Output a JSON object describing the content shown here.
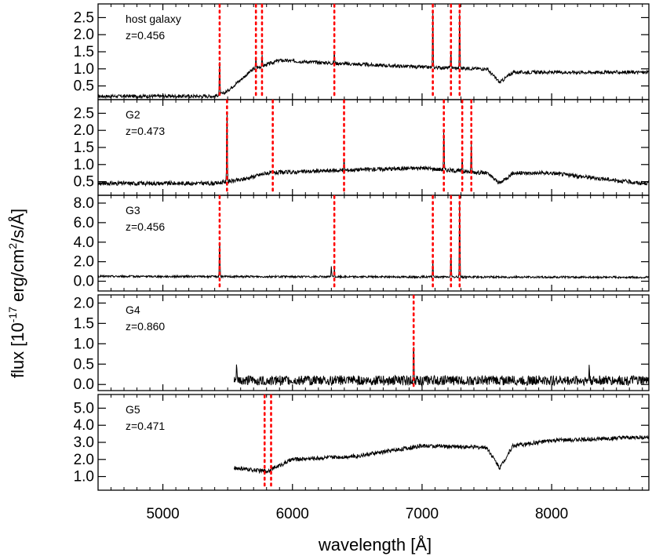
{
  "chart_data": {
    "type": "line",
    "xlabel": "wavelength [Å]",
    "ylabel": "flux [10-17 erg/cm2/s/Å]",
    "ylabel_parts": {
      "prefix": "flux [10",
      "exp1": "-17",
      "middle": " erg/cm",
      "exp2": "2",
      "suffix": "/s/Å]"
    },
    "xlim": [
      4500,
      8750
    ],
    "xticks": [
      5000,
      6000,
      7000,
      8000
    ],
    "line_color": "#000000",
    "marker_color": "#ff0000",
    "panels": [
      {
        "name": "host galaxy",
        "redshift": "z=0.456",
        "ylim": [
          0.1,
          2.9
        ],
        "yticks": [
          0.5,
          1.0,
          1.5,
          2.0,
          2.5
        ],
        "ytick_labels": [
          "0.5",
          "1.0",
          "1.5",
          "2.0",
          "2.5"
        ],
        "marker_lines": [
          5438,
          5718,
          5765,
          6323,
          7083,
          7223,
          7290
        ],
        "continuum": [
          [
            4500,
            0.2
          ],
          [
            5400,
            0.2
          ],
          [
            5480,
            0.3
          ],
          [
            5700,
            1.0
          ],
          [
            5900,
            1.25
          ],
          [
            6400,
            1.15
          ],
          [
            7000,
            1.05
          ],
          [
            7500,
            1.0
          ],
          [
            7600,
            0.6
          ],
          [
            7700,
            0.9
          ],
          [
            8000,
            0.9
          ],
          [
            8700,
            0.9
          ]
        ],
        "noise": 0.05,
        "emission": [
          [
            5438,
            1.0
          ],
          [
            5718,
            0.3
          ],
          [
            5765,
            0.3
          ],
          [
            6323,
            0.3
          ],
          [
            7083,
            1.6
          ],
          [
            7223,
            0.5
          ],
          [
            7290,
            1.6
          ]
        ]
      },
      {
        "name": "G2",
        "redshift": "z=0.473",
        "ylim": [
          0.1,
          2.9
        ],
        "yticks": [
          0.5,
          1.0,
          1.5,
          2.0,
          2.5
        ],
        "ytick_labels": [
          "0.5",
          "1.0",
          "1.5",
          "2.0",
          "2.5"
        ],
        "marker_lines": [
          5495,
          5848,
          6398,
          7168,
          7310,
          7380
        ],
        "continuum": [
          [
            4500,
            0.45
          ],
          [
            5400,
            0.45
          ],
          [
            5600,
            0.55
          ],
          [
            5800,
            0.75
          ],
          [
            6500,
            0.85
          ],
          [
            7000,
            0.9
          ],
          [
            7500,
            0.75
          ],
          [
            7600,
            0.45
          ],
          [
            7700,
            0.75
          ],
          [
            8000,
            0.75
          ],
          [
            8700,
            0.45
          ]
        ],
        "noise": 0.06,
        "emission": [
          [
            5495,
            2.2
          ],
          [
            6398,
            0.3
          ],
          [
            7168,
            1.2
          ],
          [
            7310,
            0.4
          ],
          [
            7380,
            0.8
          ]
        ]
      },
      {
        "name": "G3",
        "redshift": "z=0.456",
        "ylim": [
          -1.0,
          8.8
        ],
        "yticks": [
          0.0,
          2.0,
          4.0,
          6.0,
          8.0
        ],
        "ytick_labels": [
          "0.0",
          "2.0",
          "4.0",
          "6.0",
          "8.0"
        ],
        "marker_lines": [
          5438,
          6323,
          7083,
          7223,
          7290
        ],
        "continuum": [
          [
            4500,
            0.5
          ],
          [
            8700,
            0.4
          ]
        ],
        "noise": 0.1,
        "emission": [
          [
            5438,
            3.9
          ],
          [
            6300,
            1.0
          ],
          [
            6323,
            0.8
          ],
          [
            7083,
            1.7
          ],
          [
            7223,
            2.4
          ],
          [
            7290,
            7.8
          ]
        ]
      },
      {
        "name": "G4",
        "redshift": "z=0.860",
        "ylim": [
          -0.15,
          2.2
        ],
        "yticks": [
          0.0,
          0.5,
          1.0,
          1.5,
          2.0
        ],
        "ytick_labels": [
          "0.0",
          "0.5",
          "1.0",
          "1.5",
          "2.0"
        ],
        "marker_lines": [
          6935
        ],
        "start": 5550,
        "continuum": [
          [
            5550,
            0.1
          ],
          [
            8700,
            0.1
          ]
        ],
        "noise": 0.12,
        "emission": [
          [
            5570,
            0.4
          ],
          [
            6935,
            1.0
          ],
          [
            8290,
            0.4
          ]
        ]
      },
      {
        "name": "G5",
        "redshift": "z=0.471",
        "ylim": [
          0.2,
          5.8
        ],
        "yticks": [
          1.0,
          2.0,
          3.0,
          4.0,
          5.0
        ],
        "ytick_labels": [
          "1.0",
          "2.0",
          "3.0",
          "4.0",
          "5.0"
        ],
        "marker_lines": [
          5785,
          5835
        ],
        "start": 5550,
        "continuum": [
          [
            5550,
            1.5
          ],
          [
            5800,
            1.3
          ],
          [
            6000,
            2.0
          ],
          [
            6500,
            2.2
          ],
          [
            7000,
            2.8
          ],
          [
            7500,
            2.7
          ],
          [
            7600,
            1.5
          ],
          [
            7700,
            2.8
          ],
          [
            8000,
            3.1
          ],
          [
            8700,
            3.3
          ]
        ],
        "noise": 0.12,
        "emission": []
      }
    ]
  }
}
